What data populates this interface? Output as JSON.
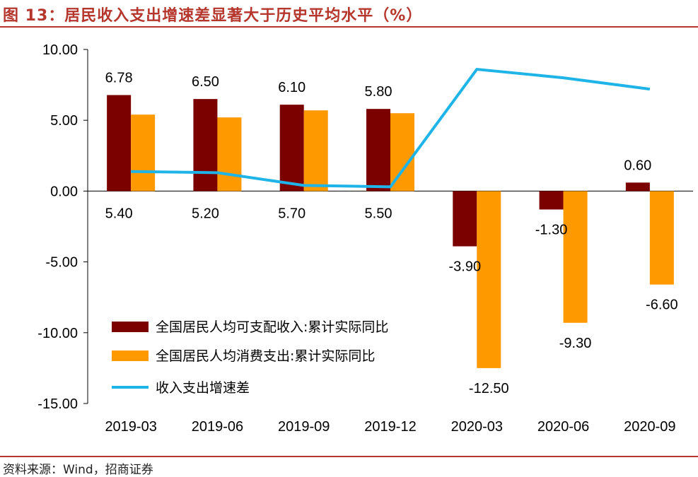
{
  "figure": {
    "title": "图 13：居民收入支出增速差显著大于历史平均水平（%）",
    "source": "资料来源：Wind，招商证券"
  },
  "colors": {
    "accent": "#b5362c",
    "income": "#7b0000",
    "consumption": "#ff9900",
    "gap": "#1eb4e8"
  },
  "chart_data": {
    "type": "bar",
    "categories": [
      "2019-03",
      "2019-06",
      "2019-09",
      "2019-12",
      "2020-03",
      "2020-06",
      "2020-09"
    ],
    "y_ticks": [
      "10.00",
      "5.00",
      "0.00",
      "-5.00",
      "-10.00",
      "-15.00"
    ],
    "ylim": [
      -15,
      10
    ],
    "series": [
      {
        "name": "全国居民人均可支配收入:累计实际同比",
        "type": "bar",
        "color": "#7b0000",
        "values": [
          6.78,
          6.5,
          6.1,
          5.8,
          -3.9,
          -1.3,
          0.6
        ],
        "labels": [
          "6.78",
          "6.50",
          "6.10",
          "5.80",
          "-3.90",
          "-1.30",
          "0.60"
        ]
      },
      {
        "name": "全国居民人均消费支出:累计实际同比",
        "type": "bar",
        "color": "#ff9900",
        "values": [
          5.4,
          5.2,
          5.7,
          5.5,
          -12.5,
          -9.3,
          -6.6
        ],
        "labels": [
          "5.40",
          "5.20",
          "5.70",
          "5.50",
          "-12.50",
          "-9.30",
          "-6.60"
        ]
      },
      {
        "name": "收入支出增速差",
        "type": "line",
        "color": "#1eb4e8",
        "values": [
          1.38,
          1.3,
          0.4,
          0.3,
          8.6,
          8.0,
          7.2
        ]
      }
    ],
    "legend_position": "bottom-left",
    "grid": false
  }
}
